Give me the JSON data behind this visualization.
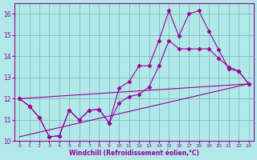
{
  "xlabel": "Windchill (Refroidissement éolien,°C)",
  "background_color": "#b2e8e8",
  "grid_color": "#7cbcbc",
  "line_color": "#990099",
  "xlim": [
    -0.5,
    23.5
  ],
  "ylim": [
    10,
    16.5
  ],
  "xticks": [
    0,
    1,
    2,
    3,
    4,
    5,
    6,
    7,
    8,
    9,
    10,
    11,
    12,
    13,
    14,
    15,
    16,
    17,
    18,
    19,
    20,
    21,
    22,
    23
  ],
  "yticks": [
    10,
    11,
    12,
    13,
    14,
    15,
    16
  ],
  "series1_x": [
    0,
    1,
    2,
    3,
    4,
    5,
    6,
    7,
    8,
    9,
    10,
    11,
    12,
    13,
    14,
    15,
    16,
    17,
    18,
    19,
    20,
    21,
    22,
    23
  ],
  "series1_y": [
    12.0,
    11.65,
    11.1,
    10.2,
    10.25,
    11.45,
    11.0,
    11.45,
    11.5,
    10.85,
    12.5,
    12.8,
    13.55,
    13.55,
    14.75,
    16.15,
    14.95,
    16.0,
    16.15,
    15.2,
    14.3,
    13.4,
    13.3,
    12.7
  ],
  "series2_x": [
    0,
    1,
    2,
    3,
    4,
    5,
    6,
    7,
    8,
    9,
    10,
    11,
    12,
    13,
    14,
    15,
    16,
    17,
    18,
    19,
    20,
    21,
    22,
    23
  ],
  "series2_y": [
    12.0,
    11.65,
    11.1,
    10.2,
    10.25,
    11.45,
    11.0,
    11.45,
    11.5,
    10.85,
    11.8,
    12.1,
    12.2,
    12.55,
    13.55,
    14.75,
    14.35,
    14.35,
    14.35,
    14.35,
    13.9,
    13.5,
    13.3,
    12.7
  ],
  "trend1_x": [
    0,
    23
  ],
  "trend1_y": [
    12.0,
    12.7
  ],
  "trend2_x": [
    0,
    23
  ],
  "trend2_y": [
    10.2,
    12.7
  ]
}
